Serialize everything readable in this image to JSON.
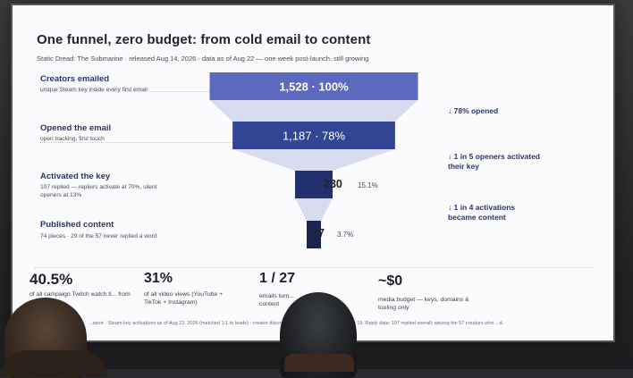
{
  "slide": {
    "title": "One funnel, zero budget: from cold email to content",
    "subtitle": "Static Dread: The Submarine · released Aug 14, 2026 · data as of Aug 22 — one week post-launch, still growing"
  },
  "chart_data": {
    "type": "funnel",
    "stages": [
      {
        "name": "Creators emailed",
        "desc": "unique Steam key inside every first email",
        "value": 1528,
        "value_label": "1,528 · 100%",
        "pct": 100,
        "pct_label": "",
        "color": "#5b6abf"
      },
      {
        "name": "Opened the email",
        "desc": "open tracking, first touch",
        "value": 1187,
        "value_label": "1,187 · 78%",
        "pct": 78,
        "pct_label": "",
        "color": "#324494"
      },
      {
        "name": "Activated the key",
        "desc": "107 replied — repliers activate at 70%, silent openers at 13%",
        "value": 230,
        "value_label": "230",
        "pct": 15.1,
        "pct_label": "15.1%",
        "color": "#22306d"
      },
      {
        "name": "Published content",
        "desc": "74 pieces · 29 of the 57 never replied a word",
        "value": 57,
        "value_label": "57",
        "pct": 3.7,
        "pct_label": "3.7%",
        "color": "#1b2450"
      }
    ],
    "conversions": [
      "↓ 78% opened",
      "↓ 1 in 5 openers activated their key",
      "↓ 1 in 4 activations became content"
    ]
  },
  "stats": [
    {
      "big": "40.5%",
      "desc": "of all campaign Twitch watch ti... from these 57"
    },
    {
      "big": "31%",
      "desc": "of all video views (YouTube + TikTok + Instagram)"
    },
    {
      "big": "1 / 27",
      "desc": "emails turn... content"
    },
    {
      "big": "~$0",
      "desc": "media budget — keys, domains & tooling only"
    }
  ],
  "footnote": "...sport · Steam key activations as of Aug 22, 2026 (matched 1:1 to leads) · creator discovery & ... -maniacs.com, as of Aug 19. Reply data: 107 replied overall; among the 57 creators who ...d."
}
